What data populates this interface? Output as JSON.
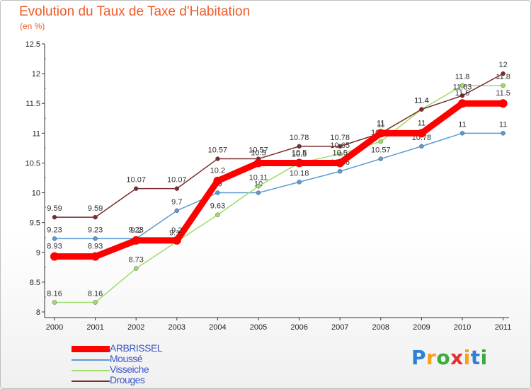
{
  "chart_data": {
    "type": "line",
    "title": "Evolution du Taux de Taxe d'Habitation",
    "unit_label": "(en %)",
    "x": [
      "2000",
      "2001",
      "2002",
      "2003",
      "2004",
      "2005",
      "2006",
      "2007",
      "2008",
      "2009",
      "2010",
      "2011"
    ],
    "ylim": [
      8,
      12.5
    ],
    "yticks": [
      "8",
      "8.5",
      "9",
      "9.5",
      "10",
      "10.5",
      "11",
      "11.5",
      "12",
      "12.5"
    ],
    "grid": false,
    "legend_position": "bottom-left",
    "series": [
      {
        "name": "ARBRISSEL",
        "color": "#ff0000",
        "values": [
          8.93,
          8.93,
          9.2,
          9.2,
          10.2,
          10.5,
          10.5,
          10.5,
          11,
          11,
          11.5,
          11.5
        ],
        "labels": [
          "8.93",
          "8.93",
          "9.2",
          "9.2",
          "10.2",
          "10.5",
          "10.5",
          "10.5",
          "11",
          "11",
          "11.5",
          "11.5"
        ]
      },
      {
        "name": "Moussé",
        "color": "#5b9bd5",
        "values": [
          9.23,
          9.23,
          9.23,
          9.7,
          10,
          10,
          10.18,
          10.36,
          10.57,
          10.78,
          11,
          11
        ],
        "labels": [
          "9.23",
          "9.23",
          "9.23",
          "9.7",
          "10",
          "10",
          "10.18",
          "10.36",
          "10.57",
          "10.78",
          "11",
          "11"
        ]
      },
      {
        "name": "Visseiche",
        "color": "#9bde6a",
        "values": [
          8.16,
          8.16,
          8.73,
          9.18,
          9.63,
          10.11,
          10.5,
          10.65,
          10.86,
          11.4,
          11.8,
          11.8
        ],
        "labels": [
          "8.16",
          "8.16",
          "8.73",
          "9.18",
          "9.63",
          "10.11",
          "10.5",
          "10.65",
          "10.86",
          "11.4",
          "11.8",
          "11.8"
        ]
      },
      {
        "name": "Drouges",
        "color": "#7b2b2b",
        "values": [
          9.59,
          9.59,
          10.07,
          10.07,
          10.57,
          10.57,
          10.78,
          10.78,
          11,
          11.4,
          11.63,
          12
        ],
        "labels": [
          "9.59",
          "9.59",
          "10.07",
          "10.07",
          "10.57",
          "10.57",
          "10.78",
          "10.78",
          "11",
          "11.4",
          "11.63",
          "12"
        ]
      }
    ]
  },
  "logo": {
    "letters": [
      {
        "char": "P",
        "color": "#2f7fd6"
      },
      {
        "char": "r",
        "color": "#f7a01b"
      },
      {
        "char": "o",
        "color": "#3daa3d"
      },
      {
        "char": "x",
        "color": "#e53030"
      },
      {
        "char": "i",
        "color": "#f7a01b"
      },
      {
        "char": "t",
        "color": "#2f7fd6"
      },
      {
        "char": "i",
        "color": "#3daa3d"
      }
    ]
  }
}
